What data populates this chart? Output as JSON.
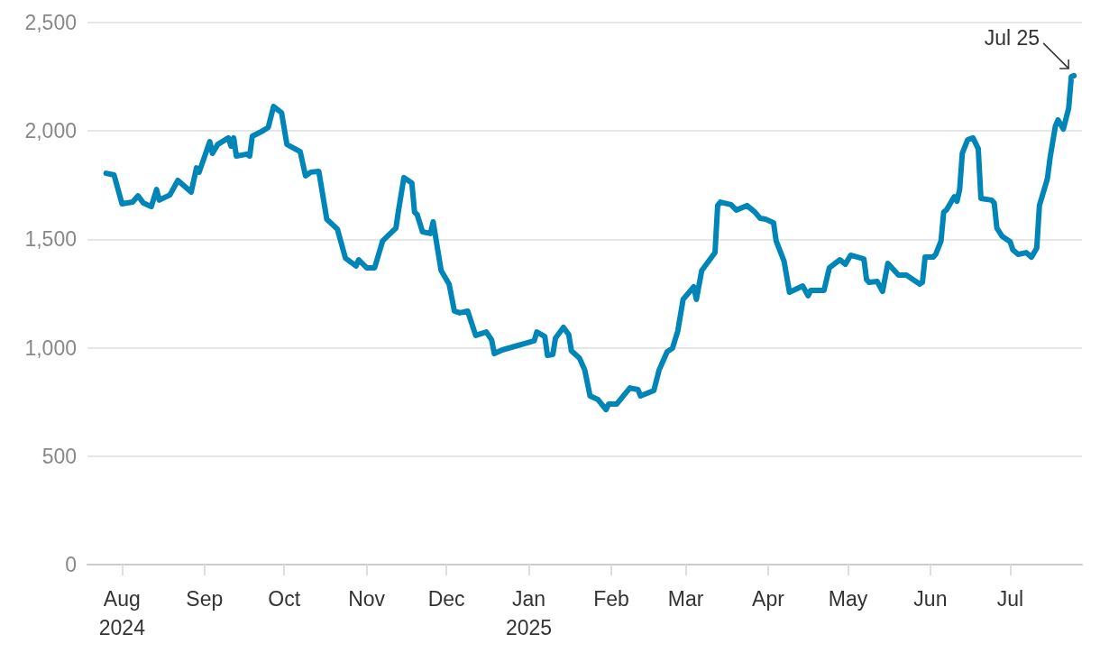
{
  "chart_data": {
    "type": "line",
    "x": [
      "2024-07-26",
      "2024-07-29",
      "2024-08-01",
      "2024-08-05",
      "2024-08-07",
      "2024-08-09",
      "2024-08-12",
      "2024-08-14",
      "2024-08-15",
      "2024-08-19",
      "2024-08-22",
      "2024-08-27",
      "2024-08-29",
      "2024-08-30",
      "2024-09-03",
      "2024-09-04",
      "2024-09-06",
      "2024-09-10",
      "2024-09-11",
      "2024-09-12",
      "2024-09-13",
      "2024-09-17",
      "2024-09-18",
      "2024-09-19",
      "2024-09-23",
      "2024-09-25",
      "2024-09-27",
      "2024-09-30",
      "2024-10-02",
      "2024-10-07",
      "2024-10-09",
      "2024-10-11",
      "2024-10-14",
      "2024-10-17",
      "2024-10-21",
      "2024-10-24",
      "2024-10-28",
      "2024-10-29",
      "2024-11-01",
      "2024-11-04",
      "2024-11-07",
      "2024-11-12",
      "2024-11-13",
      "2024-11-15",
      "2024-11-18",
      "2024-11-19",
      "2024-11-20",
      "2024-11-22",
      "2024-11-25",
      "2024-11-26",
      "2024-11-29",
      "2024-12-02",
      "2024-12-04",
      "2024-12-06",
      "2024-12-09",
      "2024-12-12",
      "2024-12-16",
      "2024-12-18",
      "2024-12-19",
      "2024-12-22",
      "2025-01-03",
      "2025-01-04",
      "2025-01-07",
      "2025-01-08",
      "2025-01-10",
      "2025-01-11",
      "2025-01-14",
      "2025-01-16",
      "2025-01-17",
      "2025-01-20",
      "2025-01-22",
      "2025-01-24",
      "2025-01-27",
      "2025-01-30",
      "2025-01-31",
      "2025-02-03",
      "2025-02-08",
      "2025-02-11",
      "2025-02-12",
      "2025-02-17",
      "2025-02-19",
      "2025-02-22",
      "2025-02-24",
      "2025-02-26",
      "2025-02-28",
      "2025-03-04",
      "2025-03-05",
      "2025-03-07",
      "2025-03-12",
      "2025-03-13",
      "2025-03-14",
      "2025-03-18",
      "2025-03-20",
      "2025-03-24",
      "2025-03-27",
      "2025-03-29",
      "2025-03-31",
      "2025-04-03",
      "2025-04-04",
      "2025-04-07",
      "2025-04-09",
      "2025-04-14",
      "2025-04-16",
      "2025-04-17",
      "2025-04-22",
      "2025-04-24",
      "2025-04-28",
      "2025-04-30",
      "2025-05-02",
      "2025-05-07",
      "2025-05-08",
      "2025-05-09",
      "2025-05-12",
      "2025-05-14",
      "2025-05-16",
      "2025-05-20",
      "2025-05-23",
      "2025-05-28",
      "2025-05-29",
      "2025-05-30",
      "2025-06-02",
      "2025-06-03",
      "2025-06-05",
      "2025-06-06",
      "2025-06-07",
      "2025-06-10",
      "2025-06-11",
      "2025-06-12",
      "2025-06-13",
      "2025-06-15",
      "2025-06-17",
      "2025-06-19",
      "2025-06-20",
      "2025-06-24",
      "2025-06-25",
      "2025-06-26",
      "2025-06-28",
      "2025-07-01",
      "2025-07-02",
      "2025-07-04",
      "2025-07-07",
      "2025-07-09",
      "2025-07-11",
      "2025-07-12",
      "2025-07-15",
      "2025-07-16",
      "2025-07-18",
      "2025-07-19",
      "2025-07-21",
      "2025-07-23",
      "2025-07-24",
      "2025-07-25"
    ],
    "series": [
      {
        "color": "#0085b8",
        "values": [
          1805,
          1797,
          1664,
          1672,
          1701,
          1668,
          1651,
          1730,
          1681,
          1705,
          1772,
          1718,
          1830,
          1810,
          1951,
          1897,
          1938,
          1968,
          1930,
          1968,
          1884,
          1893,
          1884,
          1976,
          2001,
          2017,
          2113,
          2084,
          1938,
          1905,
          1793,
          1810,
          1814,
          1593,
          1547,
          1414,
          1377,
          1406,
          1369,
          1369,
          1493,
          1552,
          1635,
          1785,
          1760,
          1626,
          1614,
          1535,
          1527,
          1581,
          1356,
          1294,
          1169,
          1161,
          1169,
          1057,
          1073,
          1036,
          973,
          990,
          1032,
          1073,
          1052,
          965,
          969,
          1044,
          1094,
          1061,
          986,
          953,
          898,
          778,
          761,
          715,
          740,
          740,
          815,
          807,
          778,
          803,
          898,
          982,
          998,
          1077,
          1223,
          1281,
          1223,
          1356,
          1439,
          1656,
          1672,
          1660,
          1635,
          1656,
          1626,
          1597,
          1593,
          1577,
          1493,
          1398,
          1256,
          1285,
          1240,
          1265,
          1265,
          1369,
          1406,
          1385,
          1427,
          1410,
          1314,
          1302,
          1306,
          1260,
          1389,
          1335,
          1335,
          1294,
          1302,
          1418,
          1418,
          1431,
          1493,
          1626,
          1635,
          1697,
          1676,
          1730,
          1897,
          1959,
          1968,
          1918,
          1689,
          1681,
          1668,
          1552,
          1514,
          1489,
          1452,
          1431,
          1439,
          1418,
          1460,
          1656,
          1780,
          1876,
          2022,
          2051,
          2009,
          2105,
          2250,
          2255
        ]
      }
    ],
    "xlim": [
      "2024-07-19",
      "2025-07-28"
    ],
    "xticks": [
      {
        "value": "2024-08-01",
        "label": "Aug\n2024"
      },
      {
        "value": "2024-09-01",
        "label": "Sep"
      },
      {
        "value": "2024-10-01",
        "label": "Oct"
      },
      {
        "value": "2024-11-01",
        "label": "Nov"
      },
      {
        "value": "2024-12-01",
        "label": "Dec"
      },
      {
        "value": "2025-01-01",
        "label": "Jan\n2025"
      },
      {
        "value": "2025-02-01",
        "label": "Feb"
      },
      {
        "value": "2025-03-01",
        "label": "Mar"
      },
      {
        "value": "2025-04-01",
        "label": "Apr"
      },
      {
        "value": "2025-05-01",
        "label": "May"
      },
      {
        "value": "2025-06-01",
        "label": "Jun"
      },
      {
        "value": "2025-07-01",
        "label": "Jul"
      }
    ],
    "ylim": [
      0,
      2500
    ],
    "yticks": [
      0,
      {
        "value": 500,
        "label": "500"
      },
      {
        "value": 1000,
        "label": "1,000"
      },
      {
        "value": 1500,
        "label": "1,500"
      },
      {
        "value": 2000,
        "label": "2,000"
      },
      {
        "value": 2500,
        "label": "2,500"
      }
    ],
    "grid": "y",
    "marker": "none",
    "line_style": "solid",
    "annotations": [
      {
        "text": "Jul 25",
        "x": "2025-07-25",
        "y": 2255
      }
    ]
  }
}
